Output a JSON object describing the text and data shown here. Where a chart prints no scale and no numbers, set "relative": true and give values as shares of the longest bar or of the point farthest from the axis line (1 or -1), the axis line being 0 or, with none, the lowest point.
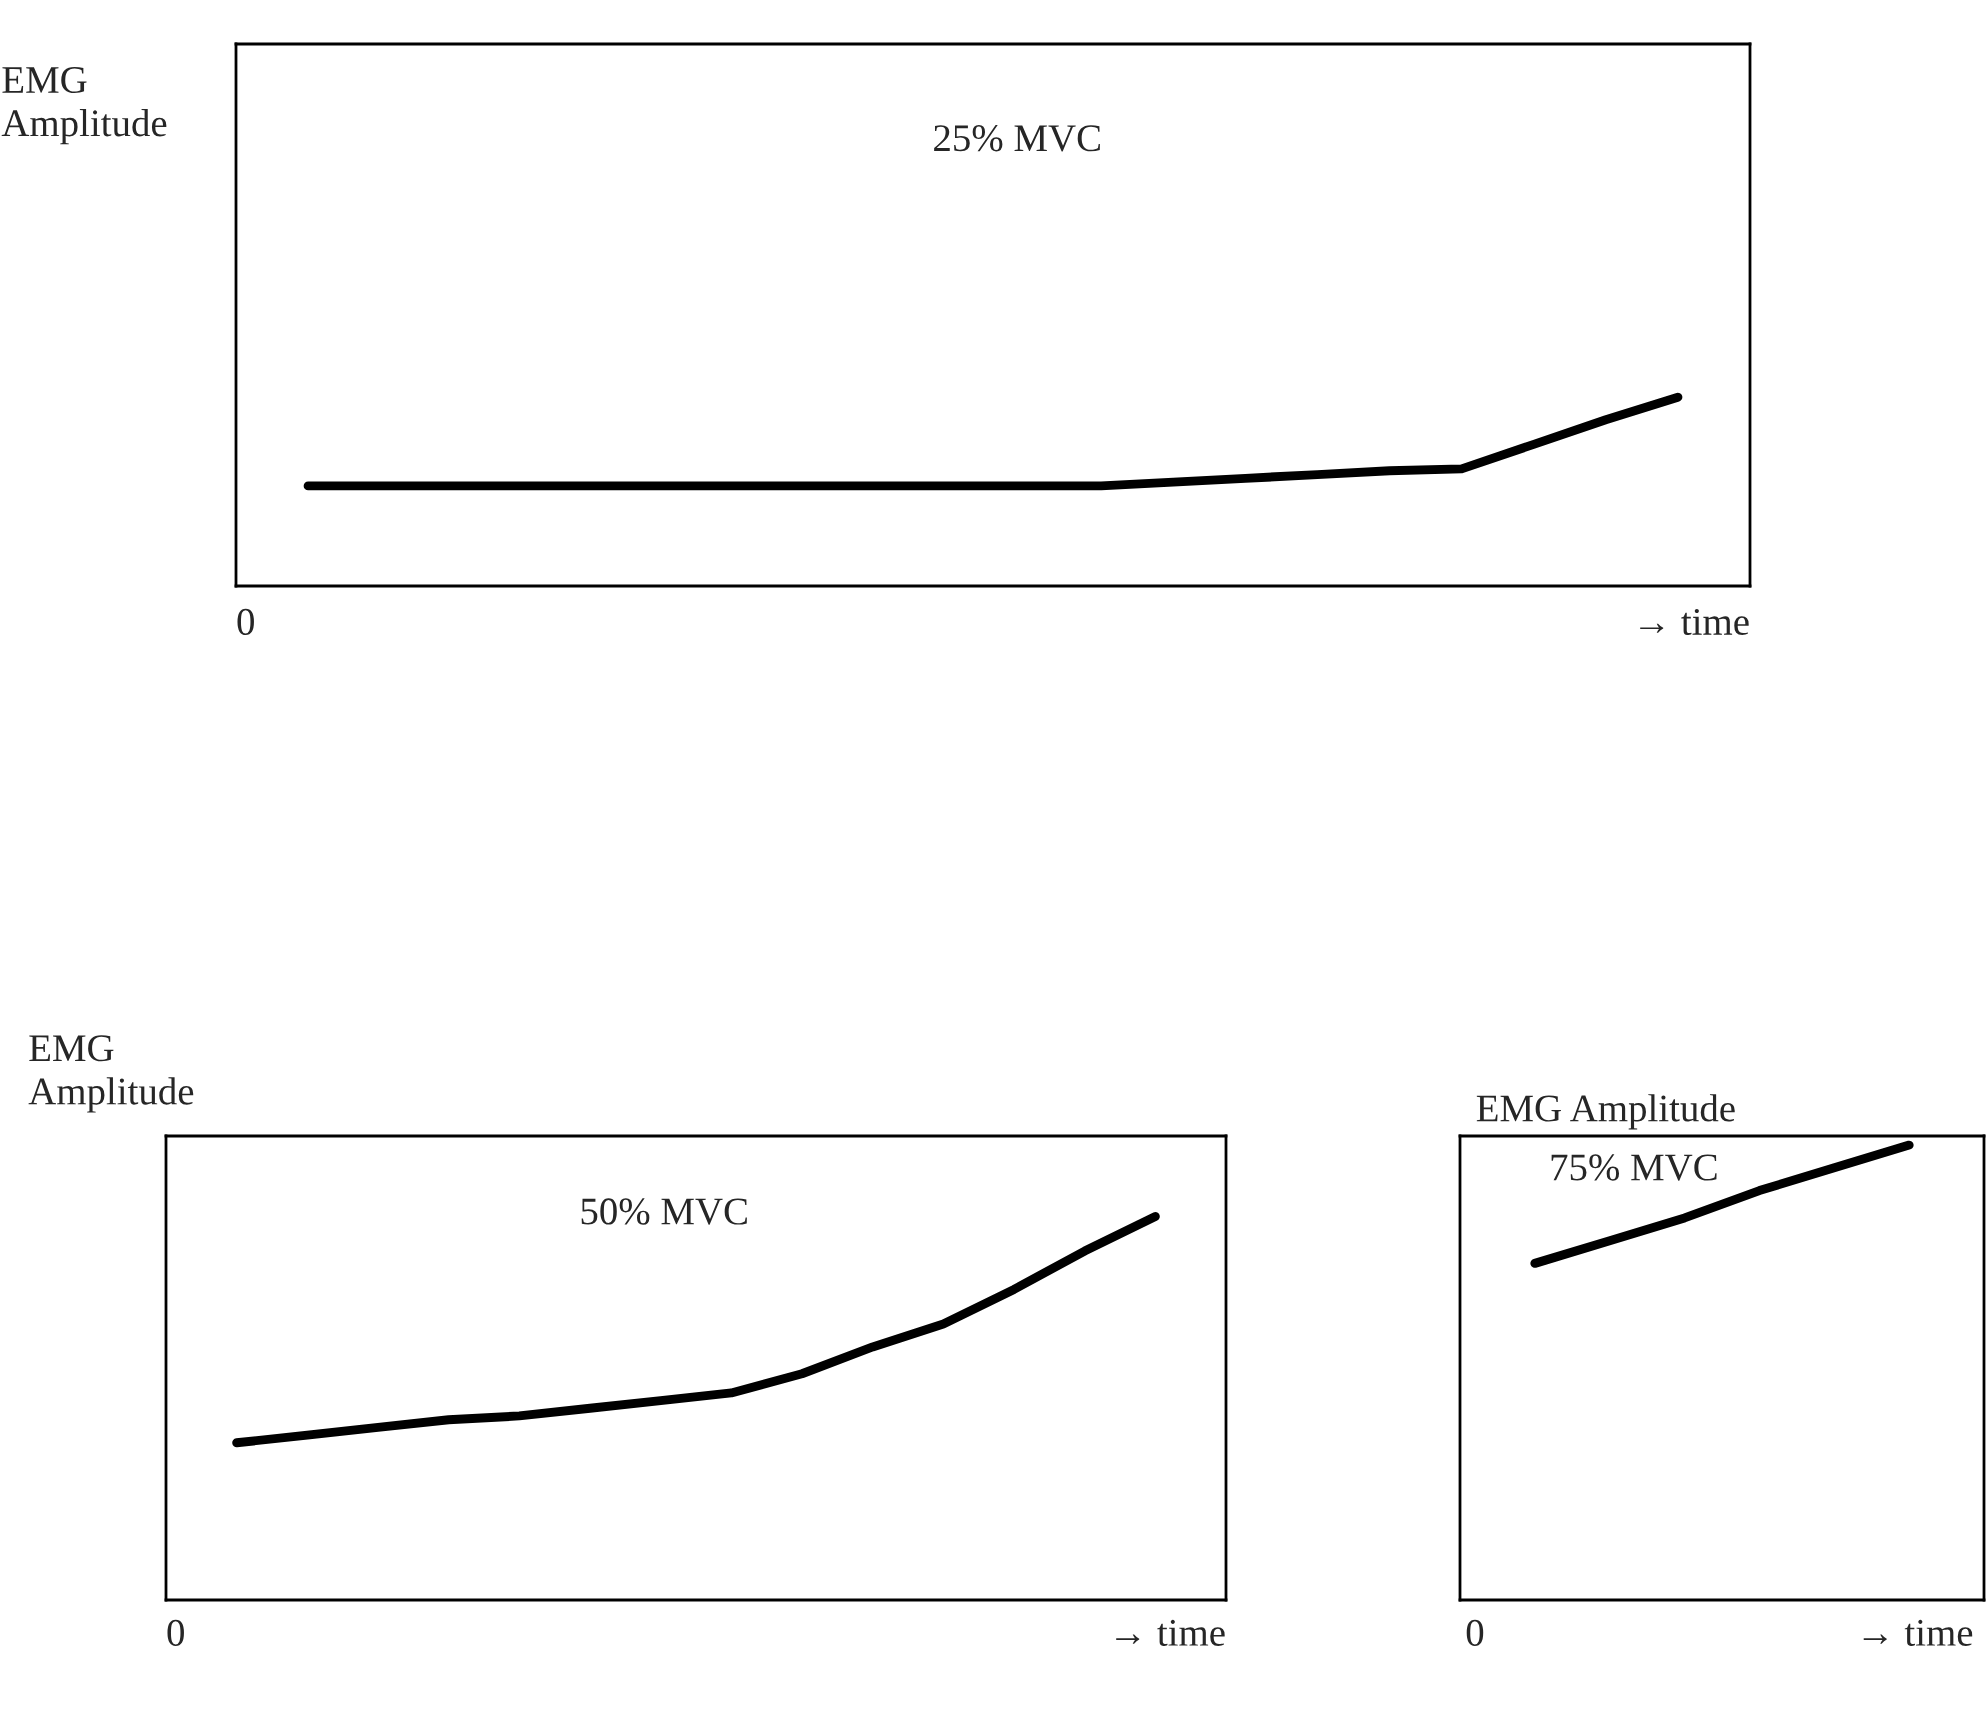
{
  "chart_data": [
    {
      "type": "line",
      "relative": true,
      "title": "25% MVC",
      "ylabel": "EMG\nAmplitude",
      "xlabel": "→ time",
      "annotations": [
        "0"
      ],
      "categories": [
        null,
        null,
        null,
        null,
        null,
        null,
        null,
        null,
        null,
        null,
        null,
        null,
        null,
        null,
        null,
        null,
        null,
        null,
        null,
        null
      ],
      "series": [
        {
          "color": "#000000",
          "values": [
            0.53,
            0.53,
            0.53,
            0.53,
            0.53,
            0.53,
            0.53,
            0.53,
            0.53,
            0.53,
            0.53,
            0.53,
            0.55,
            0.57,
            0.59,
            0.61,
            0.62,
            0.75,
            0.88,
            1
          ]
        }
      ]
    },
    {
      "type": "line",
      "relative": true,
      "title": "50% MVC",
      "ylabel": "EMG\nAmplitude",
      "xlabel": "→ time",
      "annotations": [
        "0"
      ],
      "categories": [
        null,
        null,
        null,
        null,
        null,
        null,
        null,
        null,
        null,
        null,
        null,
        null,
        null,
        null
      ],
      "series": [
        {
          "color": "#000000",
          "values": [
            0.41,
            0.43,
            0.45,
            0.47,
            0.48,
            0.5,
            0.52,
            0.54,
            0.59,
            0.66,
            0.72,
            0.81,
            0.91,
            1
          ]
        }
      ]
    },
    {
      "type": "line",
      "relative": true,
      "title": "75% MVC",
      "ylabel": "EMG Amplitude",
      "xlabel": "→ time",
      "annotations": [
        "0"
      ],
      "categories": [
        null,
        null,
        null,
        null,
        null,
        null
      ],
      "series": [
        {
          "color": "#000000",
          "values": [
            0.74,
            0.79,
            0.84,
            0.9,
            0.95,
            1
          ]
        }
      ]
    }
  ]
}
